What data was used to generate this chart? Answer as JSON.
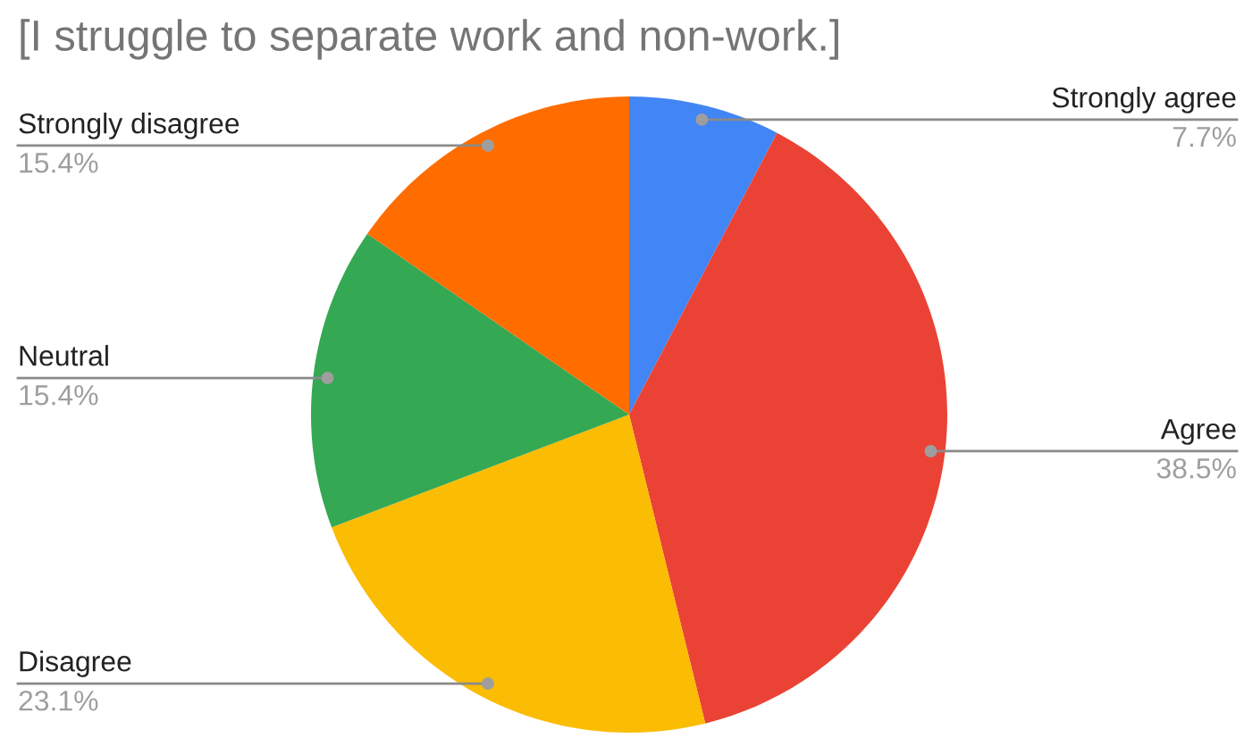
{
  "chart_data": {
    "type": "pie",
    "title": "[I struggle to separate work and non-work.]",
    "categories": [
      "Strongly agree",
      "Agree",
      "Disagree",
      "Neutral",
      "Strongly disagree"
    ],
    "values": [
      7.7,
      38.5,
      23.1,
      15.4,
      15.4
    ],
    "value_labels": [
      "7.7%",
      "38.5%",
      "23.1%",
      "15.4%",
      "15.4%"
    ],
    "colors": [
      "#4285f4",
      "#ea4335",
      "#fbbc04",
      "#34a853",
      "#ff6d01"
    ],
    "legend": false
  }
}
